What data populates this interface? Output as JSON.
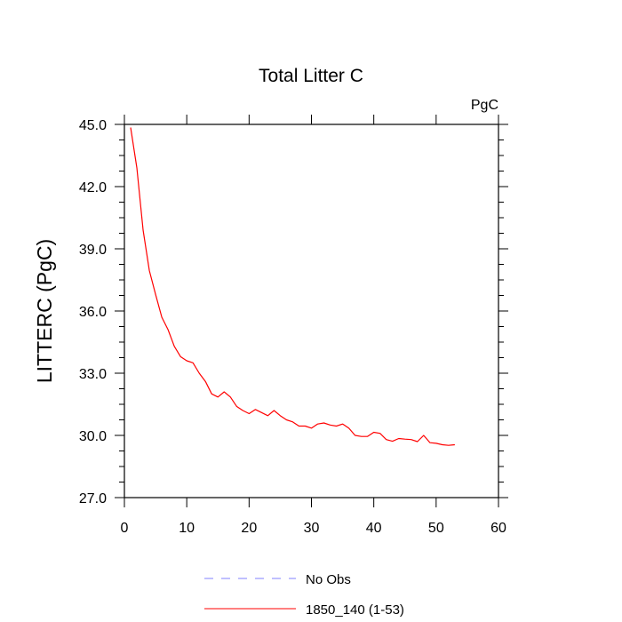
{
  "chart_data": {
    "type": "line",
    "title": "Total Litter C",
    "units_label": "PgC",
    "ylabel": "LITTERC  (PgC)",
    "xlabel": "",
    "xlim": [
      0,
      60
    ],
    "ylim": [
      27.0,
      45.0
    ],
    "x_ticks": [
      0,
      10,
      20,
      30,
      40,
      50,
      60
    ],
    "x_tick_labels": [
      "0",
      "10",
      "20",
      "30",
      "40",
      "50",
      "60"
    ],
    "y_ticks": [
      27.0,
      30.0,
      33.0,
      36.0,
      39.0,
      42.0,
      45.0
    ],
    "y_tick_labels": [
      "27.0",
      "30.0",
      "33.0",
      "36.0",
      "39.0",
      "42.0",
      "45.0"
    ],
    "grid": false,
    "legend_position": "bottom",
    "series": [
      {
        "name": "1850_140 (1-53)",
        "color": "#ff0000",
        "style": "solid",
        "x": [
          1,
          2,
          3,
          4,
          5,
          6,
          7,
          8,
          9,
          10,
          11,
          12,
          13,
          14,
          15,
          16,
          17,
          18,
          19,
          20,
          21,
          22,
          23,
          24,
          25,
          26,
          27,
          28,
          29,
          30,
          31,
          32,
          33,
          34,
          35,
          36,
          37,
          38,
          39,
          40,
          41,
          42,
          43,
          44,
          45,
          46,
          47,
          48,
          49,
          50,
          51,
          52,
          53
        ],
        "y": [
          44.85,
          42.9,
          39.9,
          37.95,
          36.8,
          35.7,
          35.1,
          34.3,
          33.8,
          33.6,
          33.5,
          33.0,
          32.6,
          32.0,
          31.85,
          32.1,
          31.85,
          31.4,
          31.2,
          31.05,
          31.25,
          31.1,
          30.95,
          31.2,
          30.95,
          30.75,
          30.65,
          30.45,
          30.45,
          30.35,
          30.55,
          30.6,
          30.5,
          30.45,
          30.55,
          30.35,
          30.0,
          29.95,
          29.95,
          30.15,
          30.1,
          29.8,
          29.72,
          29.85,
          29.82,
          29.8,
          29.7,
          30.0,
          29.65,
          29.62,
          29.55,
          29.52,
          29.55
        ]
      }
    ],
    "legend": [
      {
        "label": "No Obs",
        "color": "#8080ff",
        "style": "dashed"
      },
      {
        "label": "1850_140 (1-53)",
        "color": "#ff0000",
        "style": "solid"
      }
    ]
  }
}
